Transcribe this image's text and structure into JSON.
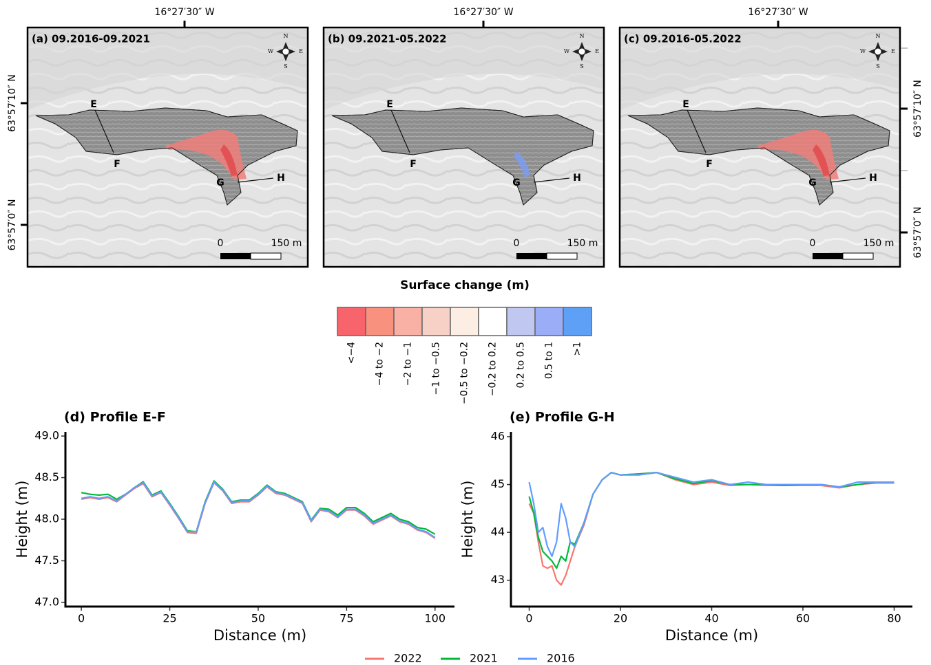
{
  "maps": {
    "longitude_label": "16°27′30″ W",
    "latitude_labels": [
      "63°57′10″ N",
      "63°57′0″ N"
    ],
    "panels": [
      {
        "title": "(a) 09.2016-09.2021"
      },
      {
        "title": "(b) 09.2021-05.2022"
      },
      {
        "title": "(c) 09.2016-05.2022"
      }
    ],
    "profile_points": [
      "E",
      "F",
      "G",
      "H"
    ],
    "compass": [
      "N",
      "S",
      "W",
      "E"
    ],
    "scale_bar": [
      "0",
      "150 m"
    ]
  },
  "legend": {
    "title": "Surface change (m)",
    "classes": [
      {
        "label": "<−4",
        "color": "#f8646b"
      },
      {
        "label": "−4 to −2",
        "color": "#f8927f"
      },
      {
        "label": "−2 to −1",
        "color": "#f9b0a5"
      },
      {
        "label": "−1 to −0.5",
        "color": "#f7d1c5"
      },
      {
        "label": "−0.5 to −0.2",
        "color": "#fdeee4"
      },
      {
        "label": "−0.2 to 0.2",
        "color": "#ffffff"
      },
      {
        "label": "0.2 to 0.5",
        "color": "#c0c8f2"
      },
      {
        "label": "0.5 to 1",
        "color": "#9cadf7"
      },
      {
        "label": ">1",
        "color": "#5fa0f7"
      }
    ]
  },
  "chart_data": [
    {
      "type": "line",
      "title": "(d) Profile E-F",
      "x_label": "Distance (m)",
      "y_label": "Height (m)",
      "x": [
        0,
        2.5,
        5,
        7.5,
        10,
        12.5,
        15,
        17.5,
        20,
        22.5,
        25,
        27.5,
        30,
        32.5,
        35,
        37.5,
        40,
        42.5,
        45,
        47.5,
        50,
        52.5,
        55,
        57.5,
        60,
        62.5,
        65,
        67.5,
        70,
        72.5,
        75,
        77.5,
        80,
        82.5,
        85,
        87.5,
        90,
        92.5,
        95,
        97.5,
        100
      ],
      "series": [
        {
          "name": "2022",
          "color": "#f8766d",
          "values": [
            48.24,
            48.26,
            48.24,
            48.26,
            48.21,
            48.29,
            48.37,
            48.43,
            48.27,
            48.32,
            48.17,
            48.01,
            47.84,
            47.83,
            48.19,
            48.44,
            48.34,
            48.19,
            48.21,
            48.21,
            48.29,
            48.39,
            48.31,
            48.29,
            48.24,
            48.19,
            47.97,
            48.11,
            48.09,
            48.02,
            48.11,
            48.11,
            48.04,
            47.94,
            47.99,
            48.04,
            47.97,
            47.94,
            47.87,
            47.84,
            47.77
          ]
        },
        {
          "name": "2021",
          "color": "#00ba38",
          "values": [
            48.32,
            48.3,
            48.29,
            48.3,
            48.24,
            48.3,
            48.38,
            48.45,
            48.29,
            48.34,
            48.19,
            48.03,
            47.86,
            47.85,
            48.21,
            48.46,
            48.36,
            48.21,
            48.23,
            48.23,
            48.31,
            48.41,
            48.33,
            48.31,
            48.26,
            48.21,
            47.99,
            48.13,
            48.12,
            48.05,
            48.14,
            48.14,
            48.07,
            47.97,
            48.02,
            48.07,
            48.0,
            47.97,
            47.9,
            47.88,
            47.82
          ]
        },
        {
          "name": "2016",
          "color": "#619cff",
          "values": [
            48.25,
            48.27,
            48.25,
            48.27,
            48.22,
            48.3,
            48.38,
            48.44,
            48.28,
            48.33,
            48.18,
            48.02,
            47.85,
            47.85,
            48.2,
            48.45,
            48.35,
            48.2,
            48.22,
            48.22,
            48.3,
            48.4,
            48.32,
            48.3,
            48.25,
            48.2,
            47.98,
            48.12,
            48.1,
            48.03,
            48.12,
            48.12,
            48.05,
            47.95,
            48.0,
            48.05,
            47.98,
            47.95,
            47.88,
            47.85,
            47.78
          ]
        }
      ],
      "xlim": [
        -4.5,
        105.5
      ],
      "xticks": [
        0,
        25,
        50,
        75,
        100
      ],
      "ylim": [
        46.95,
        49.05
      ],
      "yticks": [
        {
          "value": 47,
          "label": "47.0"
        },
        47.5,
        {
          "value": 48,
          "label": "48.0"
        },
        48.5,
        {
          "value": 49,
          "label": "49.0"
        }
      ]
    },
    {
      "type": "line",
      "title": "(e) Profile G-H",
      "x_label": "Distance (m)",
      "y_label": "Height (m)",
      "x": [
        0,
        1,
        2,
        3,
        4,
        5,
        6,
        7,
        8,
        9,
        10,
        12,
        14,
        16,
        18,
        20,
        24,
        28,
        32,
        36,
        40,
        44,
        48,
        52,
        56,
        60,
        64,
        68,
        72,
        76,
        80
      ],
      "series": [
        {
          "name": "2022",
          "color": "#f8766d",
          "values": [
            44.6,
            44.4,
            43.8,
            43.3,
            43.25,
            43.3,
            43.0,
            42.9,
            43.1,
            43.4,
            43.7,
            44.15,
            44.8,
            45.1,
            45.25,
            45.2,
            45.22,
            45.25,
            45.1,
            45.0,
            45.05,
            44.98,
            45.0,
            44.98,
            44.98,
            44.98,
            44.98,
            44.93,
            45.0,
            45.03,
            45.03
          ]
        },
        {
          "name": "2021",
          "color": "#00ba38",
          "values": [
            44.75,
            44.4,
            43.9,
            43.6,
            43.5,
            43.4,
            43.25,
            43.5,
            43.4,
            43.8,
            43.75,
            44.2,
            44.8,
            45.1,
            45.25,
            45.2,
            45.22,
            45.25,
            45.12,
            45.02,
            45.08,
            45.0,
            45.0,
            45.0,
            44.98,
            45.0,
            45.0,
            44.95,
            45.0,
            45.05,
            45.05
          ]
        },
        {
          "name": "2016",
          "color": "#619cff",
          "values": [
            45.05,
            44.6,
            44.0,
            44.1,
            43.7,
            43.5,
            43.8,
            44.6,
            44.3,
            43.8,
            43.7,
            44.2,
            44.8,
            45.1,
            45.25,
            45.2,
            45.2,
            45.25,
            45.15,
            45.05,
            45.1,
            45.0,
            45.05,
            45.0,
            45.0,
            45.0,
            45.0,
            44.95,
            45.05,
            45.05,
            45.05
          ]
        }
      ],
      "xlim": [
        -4,
        84
      ],
      "xticks": [
        0,
        20,
        40,
        60,
        80
      ],
      "ylim": [
        42.45,
        46.1
      ],
      "yticks": [
        43,
        44,
        45,
        46
      ]
    }
  ]
}
